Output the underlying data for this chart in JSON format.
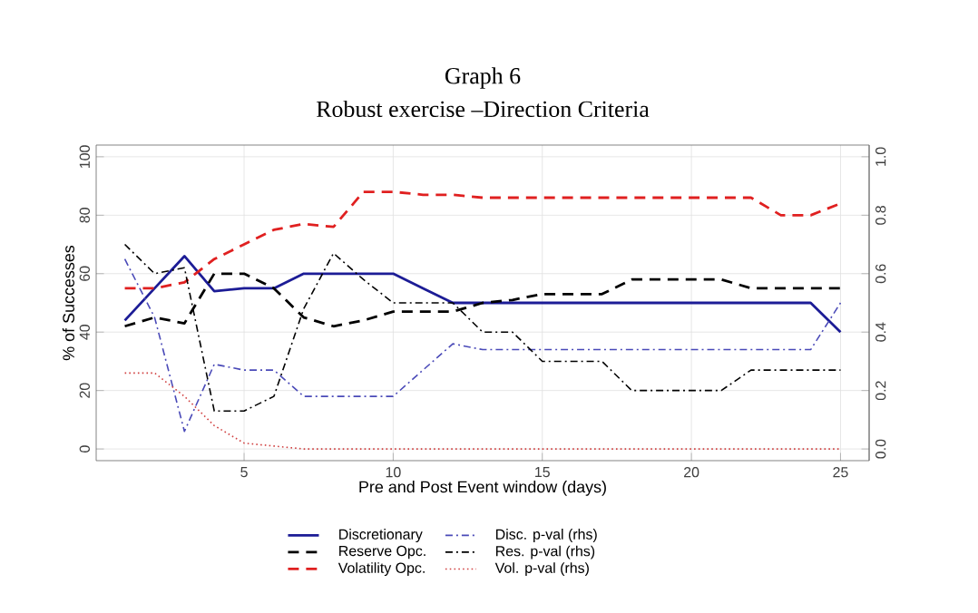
{
  "chart_data": {
    "type": "line",
    "title": "Graph 6",
    "subtitle": "Robust exercise –Direction Criteria",
    "xlabel": "Pre and Post Event window (days)",
    "ylabel": "% of Successes",
    "x": [
      1,
      2,
      3,
      4,
      5,
      6,
      7,
      8,
      9,
      10,
      11,
      12,
      13,
      14,
      15,
      16,
      17,
      18,
      19,
      20,
      21,
      22,
      23,
      24,
      25
    ],
    "series": [
      {
        "name": "Discretionary",
        "color": "#1c1c96",
        "line_style": "solid",
        "values": [
          44,
          55,
          66,
          54,
          55,
          55,
          60,
          60,
          60,
          60,
          55,
          50,
          50,
          50,
          50,
          50,
          50,
          50,
          50,
          50,
          50,
          50,
          50,
          50,
          40
        ]
      },
      {
        "name": "Reserve Opc.",
        "color": "#000000",
        "line_style": "dashed",
        "values": [
          42,
          45,
          43,
          60,
          60,
          55,
          45,
          42,
          44,
          47,
          47,
          47,
          50,
          51,
          53,
          53,
          53,
          58,
          58,
          58,
          58,
          55,
          55,
          55,
          55
        ]
      },
      {
        "name": "Volatility Opc.",
        "color": "#e02020",
        "line_style": "dashed",
        "values": [
          55,
          55,
          57,
          65,
          70,
          75,
          77,
          76,
          88,
          88,
          87,
          87,
          86,
          86,
          86,
          86,
          86,
          86,
          86,
          86,
          86,
          86,
          80,
          80,
          84
        ]
      },
      {
        "name": "Disc. p-val (rhs)",
        "color": "#4a4ab8",
        "line_style": "dashdot",
        "axis": "y2",
        "values": [
          0.65,
          0.45,
          0.06,
          0.29,
          0.27,
          0.27,
          0.18,
          0.18,
          0.18,
          0.18,
          0.27,
          0.36,
          0.34,
          0.34,
          0.34,
          0.34,
          0.34,
          0.34,
          0.34,
          0.34,
          0.34,
          0.34,
          0.34,
          0.34,
          0.5
        ]
      },
      {
        "name": "Res.  p-val (rhs)",
        "color": "#000000",
        "line_style": "dashdot",
        "axis": "y2",
        "values": [
          0.7,
          0.6,
          0.62,
          0.13,
          0.13,
          0.18,
          0.48,
          0.67,
          0.58,
          0.5,
          0.5,
          0.5,
          0.4,
          0.4,
          0.3,
          0.3,
          0.3,
          0.2,
          0.2,
          0.2,
          0.2,
          0.27,
          0.27,
          0.27,
          0.27
        ]
      },
      {
        "name": "Vol.  p-val (rhs)",
        "color": "#d04040",
        "line_style": "dotted",
        "axis": "y2",
        "values": [
          0.26,
          0.26,
          0.18,
          0.08,
          0.02,
          0.01,
          0,
          0,
          0,
          0,
          0,
          0,
          0,
          0,
          0,
          0,
          0,
          0,
          0,
          0,
          0,
          0,
          0,
          0,
          0
        ]
      }
    ],
    "xlim": [
      0.04,
      25.96
    ],
    "ylim": [
      -4,
      104
    ],
    "y2lim": [
      -0.04,
      1.04
    ],
    "xticks": [
      5,
      10,
      15,
      20,
      25
    ],
    "yticks": [
      0,
      20,
      40,
      60,
      80,
      100
    ],
    "y2ticks": [
      {
        "value": 0,
        "label": "0.0"
      },
      {
        "value": 0.2,
        "label": "0.2"
      },
      {
        "value": 0.4,
        "label": "0.4"
      },
      {
        "value": 0.6,
        "label": "0.6"
      },
      {
        "value": 0.8,
        "label": "0.8"
      },
      {
        "value": 1,
        "label": "1.0"
      }
    ],
    "grid": true,
    "legend": "bottom"
  }
}
